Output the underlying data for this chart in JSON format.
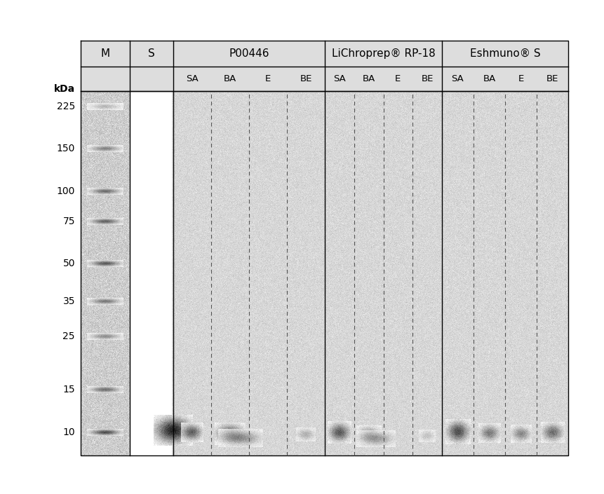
{
  "fig_width": 8.61,
  "fig_height": 7.05,
  "dpi": 100,
  "background_color": "#ffffff",
  "kda_markers": [
    225,
    150,
    100,
    75,
    50,
    35,
    25,
    15,
    10
  ],
  "marker_band_intensities": [
    0.3,
    0.55,
    0.65,
    0.7,
    0.75,
    0.6,
    0.5,
    0.65,
    0.8
  ],
  "sub_labels": [
    "SA",
    "BA",
    "E",
    "BE"
  ],
  "group_titles": [
    "P00446",
    "LiChroprep® RP-18",
    "Eshmuno® S"
  ],
  "col_headers": [
    "M",
    "S"
  ],
  "kda_label": "kDa"
}
